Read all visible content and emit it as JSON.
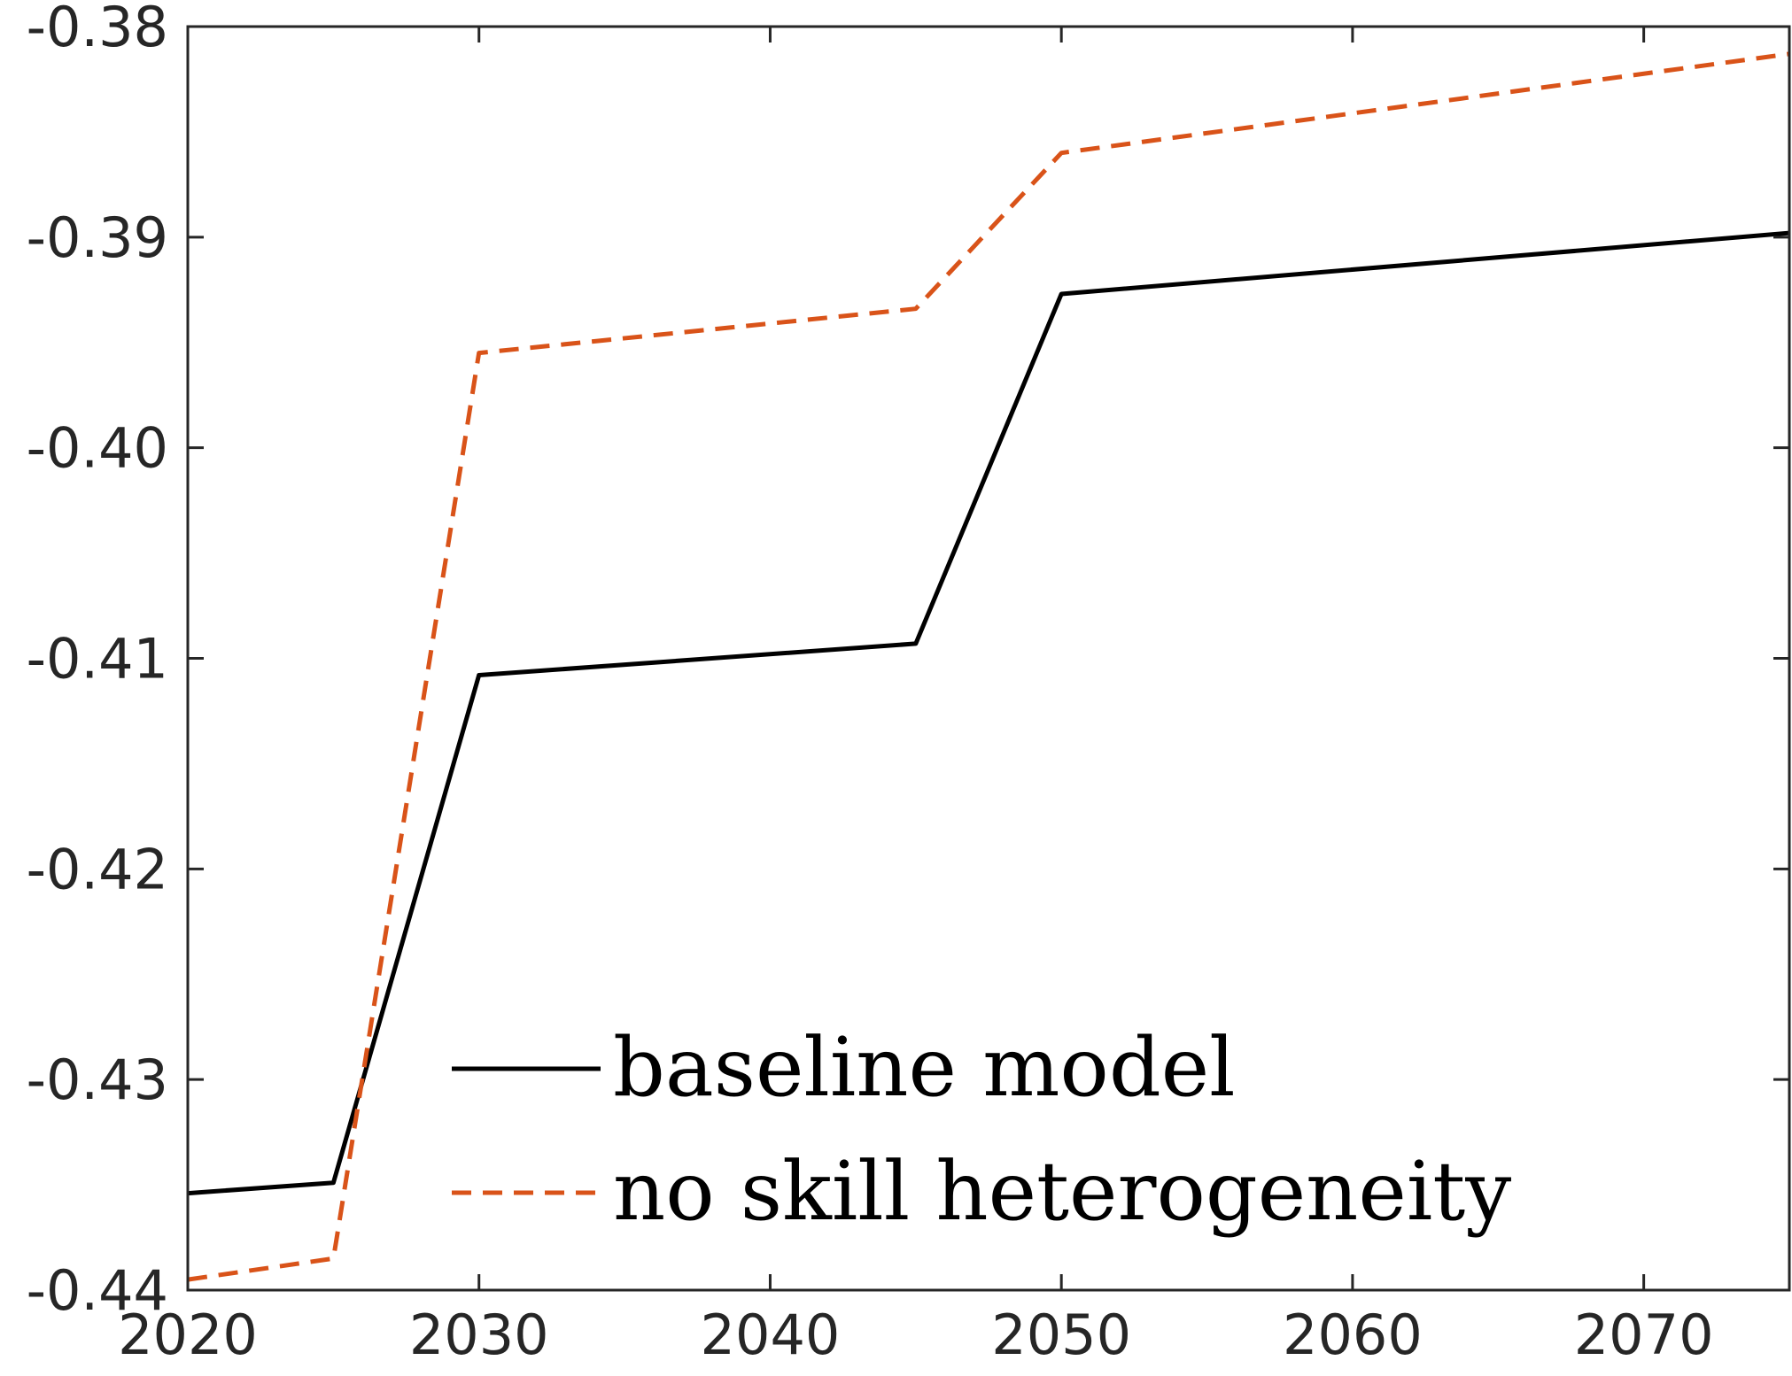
{
  "chart_data": {
    "type": "line",
    "title": "",
    "xlabel": "",
    "ylabel": "",
    "xlim": [
      2020,
      2075
    ],
    "ylim": [
      -0.44,
      -0.38
    ],
    "xticks": [
      2020,
      2030,
      2040,
      2050,
      2060,
      2070
    ],
    "yticks": [
      -0.38,
      -0.39,
      -0.4,
      -0.41,
      -0.42,
      -0.43,
      -0.44
    ],
    "xtick_labels": [
      "2020",
      "2030",
      "2040",
      "2050",
      "2060",
      "2070"
    ],
    "ytick_labels": [
      "-0.38",
      "-0.39",
      "-0.40",
      "-0.41",
      "-0.42",
      "-0.43",
      "-0.44"
    ],
    "grid": false,
    "legend_position": "bottom-center",
    "series": [
      {
        "name": "baseline model",
        "color": "#000000",
        "style": "solid",
        "x": [
          2020,
          2025,
          2030,
          2045,
          2050,
          2075
        ],
        "y": [
          -0.4354,
          -0.4349,
          -0.4108,
          -0.4093,
          -0.3927,
          -0.3898
        ]
      },
      {
        "name": "no skill heterogeneity",
        "color": "#D95319",
        "style": "dashed",
        "x": [
          2020,
          2025,
          2030,
          2045,
          2050,
          2075
        ],
        "y": [
          -0.4395,
          -0.4385,
          -0.3955,
          -0.3934,
          -0.386,
          -0.3813
        ]
      }
    ]
  }
}
